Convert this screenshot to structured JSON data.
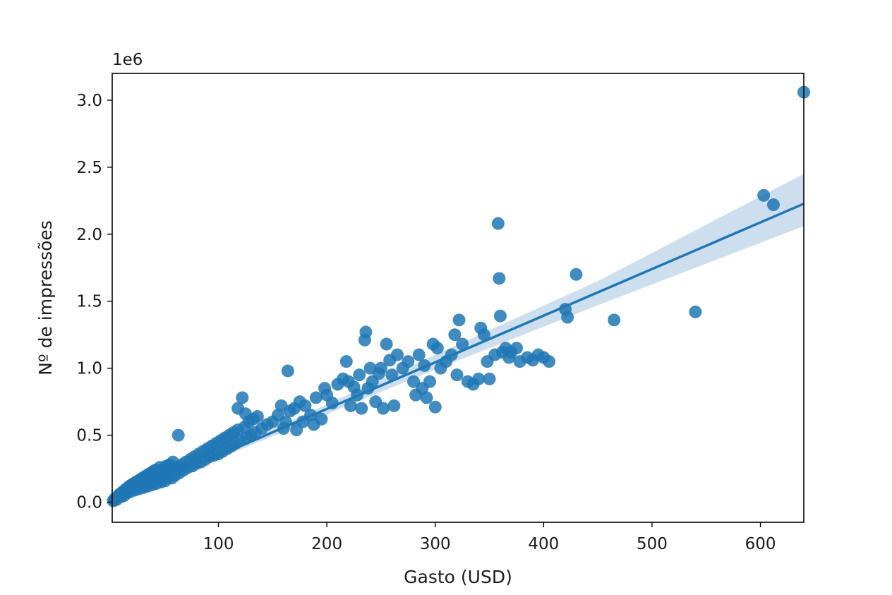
{
  "chart_data": {
    "type": "scatter",
    "title": "",
    "xlabel": "Gasto (USD)",
    "ylabel": "Nº de impressões",
    "y_offset_label": "1e6",
    "xlim": [
      2,
      640
    ],
    "ylim": [
      -0.15,
      3.2
    ],
    "x_ticks": [
      100,
      200,
      300,
      400,
      500,
      600
    ],
    "x_tick_labels": [
      "100",
      "200",
      "300",
      "400",
      "500",
      "600"
    ],
    "y_ticks": [
      0.0,
      0.5,
      1.0,
      1.5,
      2.0,
      2.5,
      3.0
    ],
    "y_tick_labels": [
      "0.0",
      "0.5",
      "1.0",
      "1.5",
      "2.0",
      "2.5",
      "3.0"
    ],
    "y_units": "millions (×1e6)",
    "grid": false,
    "legend": "none",
    "marker_color": "#1f77b4",
    "band_color": "#bcd3e8",
    "regression": {
      "slope": 0.00348,
      "intercept": 0.0,
      "ci_at_x": [
        [
          300,
          0.99,
          1.1
        ],
        [
          450,
          1.47,
          1.65
        ],
        [
          640,
          2.06,
          2.45
        ]
      ]
    },
    "points": [
      [
        3,
        0.01
      ],
      [
        4,
        0.02
      ],
      [
        5,
        0.03
      ],
      [
        6,
        0.02
      ],
      [
        7,
        0.04
      ],
      [
        8,
        0.05
      ],
      [
        9,
        0.06
      ],
      [
        10,
        0.04
      ],
      [
        11,
        0.07
      ],
      [
        12,
        0.08
      ],
      [
        13,
        0.05
      ],
      [
        14,
        0.09
      ],
      [
        15,
        0.1
      ],
      [
        16,
        0.07
      ],
      [
        17,
        0.11
      ],
      [
        18,
        0.12
      ],
      [
        19,
        0.08
      ],
      [
        20,
        0.13
      ],
      [
        21,
        0.1
      ],
      [
        22,
        0.14
      ],
      [
        23,
        0.09
      ],
      [
        24,
        0.15
      ],
      [
        25,
        0.12
      ],
      [
        26,
        0.16
      ],
      [
        27,
        0.1
      ],
      [
        28,
        0.17
      ],
      [
        29,
        0.13
      ],
      [
        30,
        0.18
      ],
      [
        31,
        0.11
      ],
      [
        32,
        0.19
      ],
      [
        33,
        0.14
      ],
      [
        34,
        0.2
      ],
      [
        35,
        0.12
      ],
      [
        36,
        0.21
      ],
      [
        37,
        0.15
      ],
      [
        38,
        0.22
      ],
      [
        39,
        0.13
      ],
      [
        40,
        0.23
      ],
      [
        41,
        0.16
      ],
      [
        42,
        0.24
      ],
      [
        43,
        0.14
      ],
      [
        44,
        0.2
      ],
      [
        45,
        0.17
      ],
      [
        46,
        0.26
      ],
      [
        47,
        0.15
      ],
      [
        48,
        0.22
      ],
      [
        49,
        0.18
      ],
      [
        50,
        0.25
      ],
      [
        51,
        0.16
      ],
      [
        52,
        0.27
      ],
      [
        53,
        0.2
      ],
      [
        54,
        0.19
      ],
      [
        55,
        0.28
      ],
      [
        56,
        0.22
      ],
      [
        57,
        0.18
      ],
      [
        58,
        0.3
      ],
      [
        59,
        0.24
      ],
      [
        60,
        0.2
      ],
      [
        62,
        0.26
      ],
      [
        63,
        0.5
      ],
      [
        64,
        0.22
      ],
      [
        66,
        0.28
      ],
      [
        68,
        0.24
      ],
      [
        70,
        0.3
      ],
      [
        72,
        0.26
      ],
      [
        74,
        0.32
      ],
      [
        76,
        0.27
      ],
      [
        78,
        0.34
      ],
      [
        80,
        0.29
      ],
      [
        82,
        0.36
      ],
      [
        84,
        0.3
      ],
      [
        86,
        0.38
      ],
      [
        88,
        0.32
      ],
      [
        90,
        0.4
      ],
      [
        92,
        0.34
      ],
      [
        94,
        0.42
      ],
      [
        96,
        0.35
      ],
      [
        98,
        0.44
      ],
      [
        100,
        0.36
      ],
      [
        102,
        0.46
      ],
      [
        104,
        0.38
      ],
      [
        106,
        0.48
      ],
      [
        108,
        0.4
      ],
      [
        110,
        0.5
      ],
      [
        112,
        0.42
      ],
      [
        114,
        0.52
      ],
      [
        116,
        0.44
      ],
      [
        118,
        0.54
      ],
      [
        120,
        0.46
      ],
      [
        122,
        0.78
      ],
      [
        124,
        0.56
      ],
      [
        126,
        0.48
      ],
      [
        128,
        0.6
      ],
      [
        130,
        0.5
      ],
      [
        132,
        0.62
      ],
      [
        134,
        0.52
      ],
      [
        136,
        0.64
      ],
      [
        140,
        0.55
      ],
      [
        118,
        0.7
      ],
      [
        125,
        0.66
      ],
      [
        145,
        0.58
      ],
      [
        150,
        0.6
      ],
      [
        155,
        0.65
      ],
      [
        158,
        0.72
      ],
      [
        160,
        0.55
      ],
      [
        162,
        0.6
      ],
      [
        164,
        0.98
      ],
      [
        166,
        0.68
      ],
      [
        170,
        0.7
      ],
      [
        172,
        0.54
      ],
      [
        175,
        0.75
      ],
      [
        178,
        0.6
      ],
      [
        180,
        0.72
      ],
      [
        185,
        0.65
      ],
      [
        188,
        0.58
      ],
      [
        190,
        0.78
      ],
      [
        195,
        0.62
      ],
      [
        198,
        0.85
      ],
      [
        200,
        0.8
      ],
      [
        205,
        0.74
      ],
      [
        210,
        0.88
      ],
      [
        215,
        0.92
      ],
      [
        218,
        1.05
      ],
      [
        220,
        0.9
      ],
      [
        222,
        0.72
      ],
      [
        225,
        0.86
      ],
      [
        228,
        0.8
      ],
      [
        230,
        0.95
      ],
      [
        232,
        0.7
      ],
      [
        235,
        1.21
      ],
      [
        236,
        1.27
      ],
      [
        238,
        0.85
      ],
      [
        240,
        1.0
      ],
      [
        242,
        0.9
      ],
      [
        245,
        0.75
      ],
      [
        248,
        0.96
      ],
      [
        250,
        1.0
      ],
      [
        252,
        0.7
      ],
      [
        255,
        1.18
      ],
      [
        258,
        1.06
      ],
      [
        260,
        0.95
      ],
      [
        262,
        0.72
      ],
      [
        265,
        1.1
      ],
      [
        270,
        1.0
      ],
      [
        275,
        1.05
      ],
      [
        280,
        0.9
      ],
      [
        282,
        0.8
      ],
      [
        285,
        1.1
      ],
      [
        288,
        0.85
      ],
      [
        290,
        1.02
      ],
      [
        292,
        0.78
      ],
      [
        295,
        0.9
      ],
      [
        298,
        1.18
      ],
      [
        300,
        0.71
      ],
      [
        302,
        1.15
      ],
      [
        305,
        1.0
      ],
      [
        310,
        1.05
      ],
      [
        315,
        1.1
      ],
      [
        318,
        1.25
      ],
      [
        320,
        0.95
      ],
      [
        322,
        1.36
      ],
      [
        325,
        1.18
      ],
      [
        330,
        0.9
      ],
      [
        335,
        0.88
      ],
      [
        340,
        0.92
      ],
      [
        342,
        1.3
      ],
      [
        345,
        1.25
      ],
      [
        348,
        1.05
      ],
      [
        350,
        0.92
      ],
      [
        355,
        1.1
      ],
      [
        358,
        2.08
      ],
      [
        359,
        1.67
      ],
      [
        360,
        1.39
      ],
      [
        362,
        1.12
      ],
      [
        365,
        1.15
      ],
      [
        368,
        1.08
      ],
      [
        370,
        1.12
      ],
      [
        375,
        1.15
      ],
      [
        378,
        1.05
      ],
      [
        385,
        1.08
      ],
      [
        390,
        1.06
      ],
      [
        395,
        1.1
      ],
      [
        400,
        1.08
      ],
      [
        405,
        1.05
      ],
      [
        420,
        1.44
      ],
      [
        422,
        1.38
      ],
      [
        430,
        1.7
      ],
      [
        465,
        1.36
      ],
      [
        540,
        1.42
      ],
      [
        603,
        2.29
      ],
      [
        612,
        2.22
      ],
      [
        640,
        3.06
      ]
    ]
  }
}
